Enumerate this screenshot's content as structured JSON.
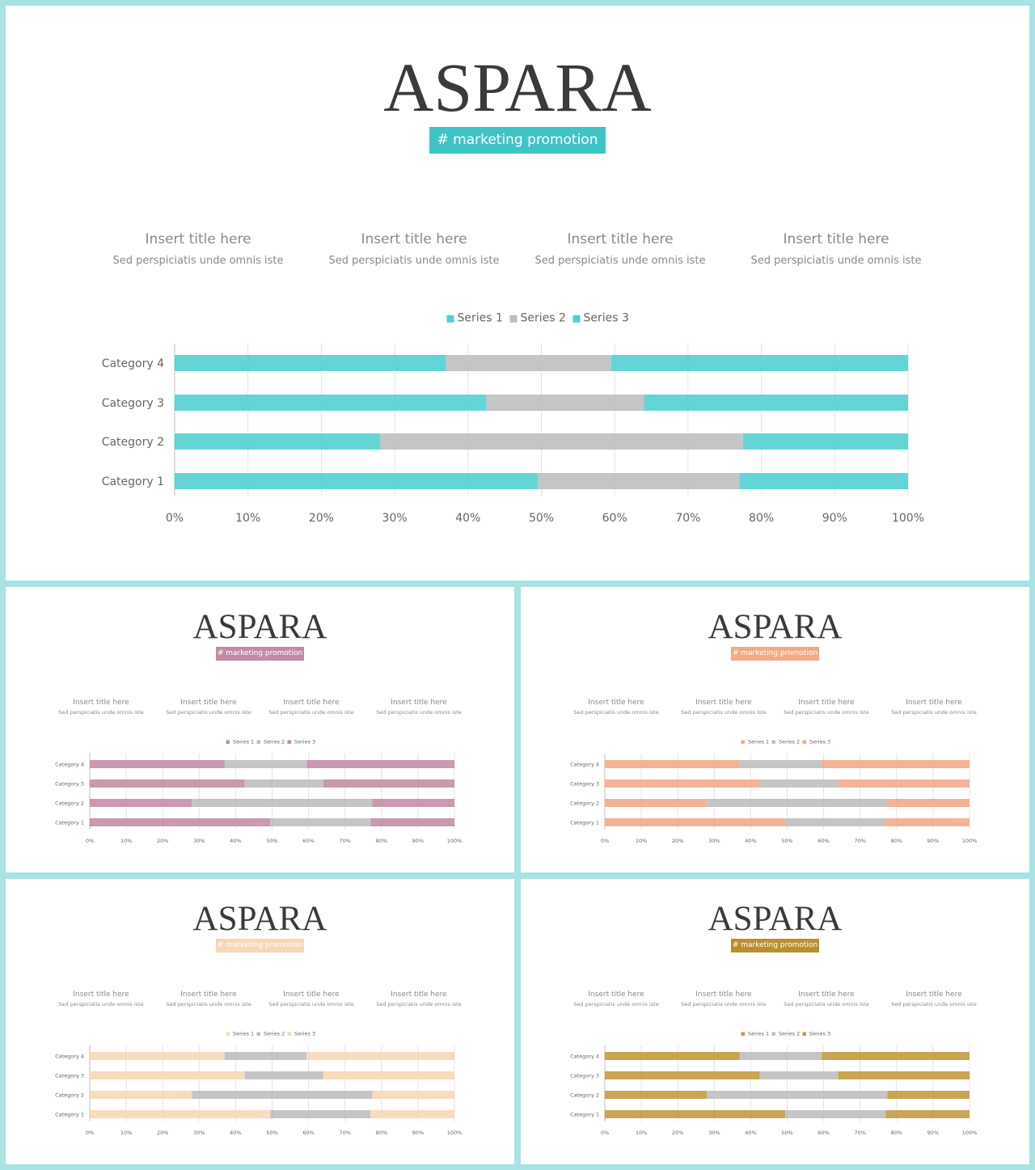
{
  "slides": [
    {
      "brand": "ASPARA",
      "tag": "# marketing promotion",
      "accent": "#4fcfd2",
      "info": [
        {
          "title": "Insert title here",
          "text": "Sed perspiciatis unde omnis iste"
        },
        {
          "title": "Insert title here",
          "text": "Sed perspiciatis unde omnis iste"
        },
        {
          "title": "Insert title here",
          "text": "Sed perspiciatis unde omnis iste"
        },
        {
          "title": "Insert title here",
          "text": "Sed perspiciatis unde omnis iste"
        }
      ]
    },
    {
      "brand": "ASPARA",
      "tag": "# marketing promotion",
      "accent": "#c28ba5",
      "info": [
        {
          "title": "Insert title here",
          "text": "Sed perspiciatis unde omnis iste"
        },
        {
          "title": "Insert title here",
          "text": "Sed perspiciatis unde omnis iste"
        },
        {
          "title": "Insert title here",
          "text": "Sed perspiciatis unde omnis iste"
        },
        {
          "title": "Insert title here",
          "text": "Sed perspiciatis unde omnis iste"
        }
      ]
    },
    {
      "brand": "ASPARA",
      "tag": "# marketing promotion",
      "accent": "#f2a985",
      "info": [
        {
          "title": "Insert title here",
          "text": "Sed perspiciatis unde omnis iste"
        },
        {
          "title": "Insert title here",
          "text": "Sed perspiciatis unde omnis iste"
        },
        {
          "title": "Insert title here",
          "text": "Sed perspiciatis unde omnis iste"
        },
        {
          "title": "Insert title here",
          "text": "Sed perspiciatis unde omnis iste"
        }
      ]
    },
    {
      "brand": "ASPARA",
      "tag": "# marketing promotion",
      "accent": "#f7d7b5",
      "info": [
        {
          "title": "Insert title here",
          "text": "Sed perspiciatis unde omnis iste"
        },
        {
          "title": "Insert title here",
          "text": "Sed perspiciatis unde omnis iste"
        },
        {
          "title": "Insert title here",
          "text": "Sed perspiciatis unde omnis iste"
        },
        {
          "title": "Insert title here",
          "text": "Sed perspiciatis unde omnis iste"
        }
      ]
    },
    {
      "brand": "ASPARA",
      "tag": "# marketing promotion",
      "accent": "#c1993c",
      "info": [
        {
          "title": "Insert title here",
          "text": "Sed perspiciatis unde omnis iste"
        },
        {
          "title": "Insert title here",
          "text": "Sed perspiciatis unde omnis iste"
        },
        {
          "title": "Insert title here",
          "text": "Sed perspiciatis unde omnis iste"
        },
        {
          "title": "Insert title here",
          "text": "Sed perspiciatis unde omnis iste"
        }
      ]
    }
  ],
  "chart_data": {
    "type": "bar",
    "orientation": "horizontal",
    "stacking": "percent",
    "categories": [
      "Category 1",
      "Category 2",
      "Category 3",
      "Category 4"
    ],
    "series": [
      {
        "name": "Series 1",
        "values": [
          49.5,
          28,
          42.5,
          37
        ]
      },
      {
        "name": "Series 2",
        "values": [
          27.5,
          49.5,
          21.5,
          22.5
        ]
      },
      {
        "name": "Series 3",
        "values": [
          23,
          22.5,
          36,
          40.5
        ]
      }
    ],
    "xticks": [
      "0%",
      "10%",
      "20%",
      "30%",
      "40%",
      "50%",
      "60%",
      "70%",
      "80%",
      "90%",
      "100%"
    ],
    "xlim": [
      0,
      100
    ],
    "grid": true,
    "legend": "top",
    "series2_color": "#bdbdbd"
  }
}
